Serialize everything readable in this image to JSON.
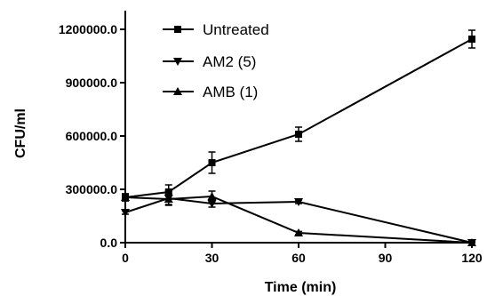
{
  "chart_data": {
    "type": "line",
    "title": "",
    "xlabel": "Time (min)",
    "ylabel": "CFU/ml",
    "xlim": [
      0,
      120
    ],
    "ylim": [
      0,
      1350000
    ],
    "x_ticks": [
      0,
      30,
      60,
      90,
      120
    ],
    "x_tick_labels": [
      "0",
      "30",
      "60",
      "90",
      "120"
    ],
    "y_ticks": [
      0,
      300000,
      600000,
      900000,
      1200000
    ],
    "y_tick_labels": [
      "0.0",
      "300000.0",
      "600000.0",
      "900000.0",
      "1200000.0"
    ],
    "grid": false,
    "legend_position": "top-left",
    "series": [
      {
        "name": "Untreated",
        "marker": "square",
        "color": "#000000",
        "x": [
          0,
          15,
          30,
          60,
          120
        ],
        "y": [
          255000,
          285000,
          450000,
          610000,
          1145000
        ],
        "error": [
          20000,
          40000,
          60000,
          40000,
          50000
        ]
      },
      {
        "name": "AM2 (5)",
        "marker": "triangle-down",
        "color": "#000000",
        "x": [
          0,
          15,
          30,
          60,
          120
        ],
        "y": [
          170000,
          250000,
          220000,
          230000,
          0
        ],
        "error": [
          10000,
          40000,
          20000,
          10000,
          5000
        ]
      },
      {
        "name": "AMB (1)",
        "marker": "triangle-up",
        "color": "#000000",
        "x": [
          0,
          15,
          30,
          60,
          120
        ],
        "y": [
          255000,
          245000,
          260000,
          55000,
          0
        ],
        "error": [
          20000,
          30000,
          30000,
          8000,
          5000
        ]
      }
    ]
  }
}
